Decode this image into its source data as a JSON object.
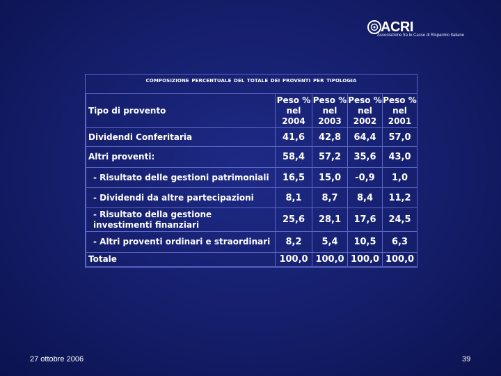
{
  "logo": {
    "name": "ACRI",
    "subtitle": "Associazione fra le Casse di Risparmio Italiane"
  },
  "table": {
    "title": "Composizione percentuale del totale dei proventi per tipologia",
    "header": {
      "label": "Tipo di provento",
      "columns": [
        "Peso % nel 2004",
        "Peso % nel 2003",
        "Peso % nel 2002",
        "Peso % nel 2001"
      ],
      "col_lines": [
        [
          "Peso %",
          "nel",
          "2004"
        ],
        [
          "Peso %",
          "nel",
          "2003"
        ],
        [
          "Peso %",
          "nel",
          "2002"
        ],
        [
          "Peso %",
          "nel",
          "2001"
        ]
      ]
    },
    "rows": [
      {
        "label": "Dividendi Conferitaria",
        "values": [
          "41,6",
          "42,8",
          "64,4",
          "57,0"
        ]
      },
      {
        "label": "Altri proventi:",
        "values": [
          "58,4",
          "57,2",
          "35,6",
          "43,0"
        ]
      },
      {
        "label": "- Risultato delle gestioni patrimoniali",
        "values": [
          "16,5",
          "15,0",
          "-0,9",
          "1,0"
        ]
      },
      {
        "label": "- Dividendi da altre partecipazioni",
        "values": [
          "8,1",
          "8,7",
          "8,4",
          "11,2"
        ]
      },
      {
        "label": "- Risultato della gestione investimenti finanziari",
        "values": [
          "25,6",
          "28,1",
          "17,6",
          "24,5"
        ]
      },
      {
        "label": "- Altri proventi ordinari e straordinari",
        "values": [
          "8,2",
          "5,4",
          "10,5",
          "6,3"
        ]
      },
      {
        "label": "Totale",
        "values": [
          "100,0",
          "100,0",
          "100,0",
          "100,0"
        ]
      }
    ]
  },
  "footer": {
    "date": "27 ottobre 2006",
    "page": "39"
  }
}
